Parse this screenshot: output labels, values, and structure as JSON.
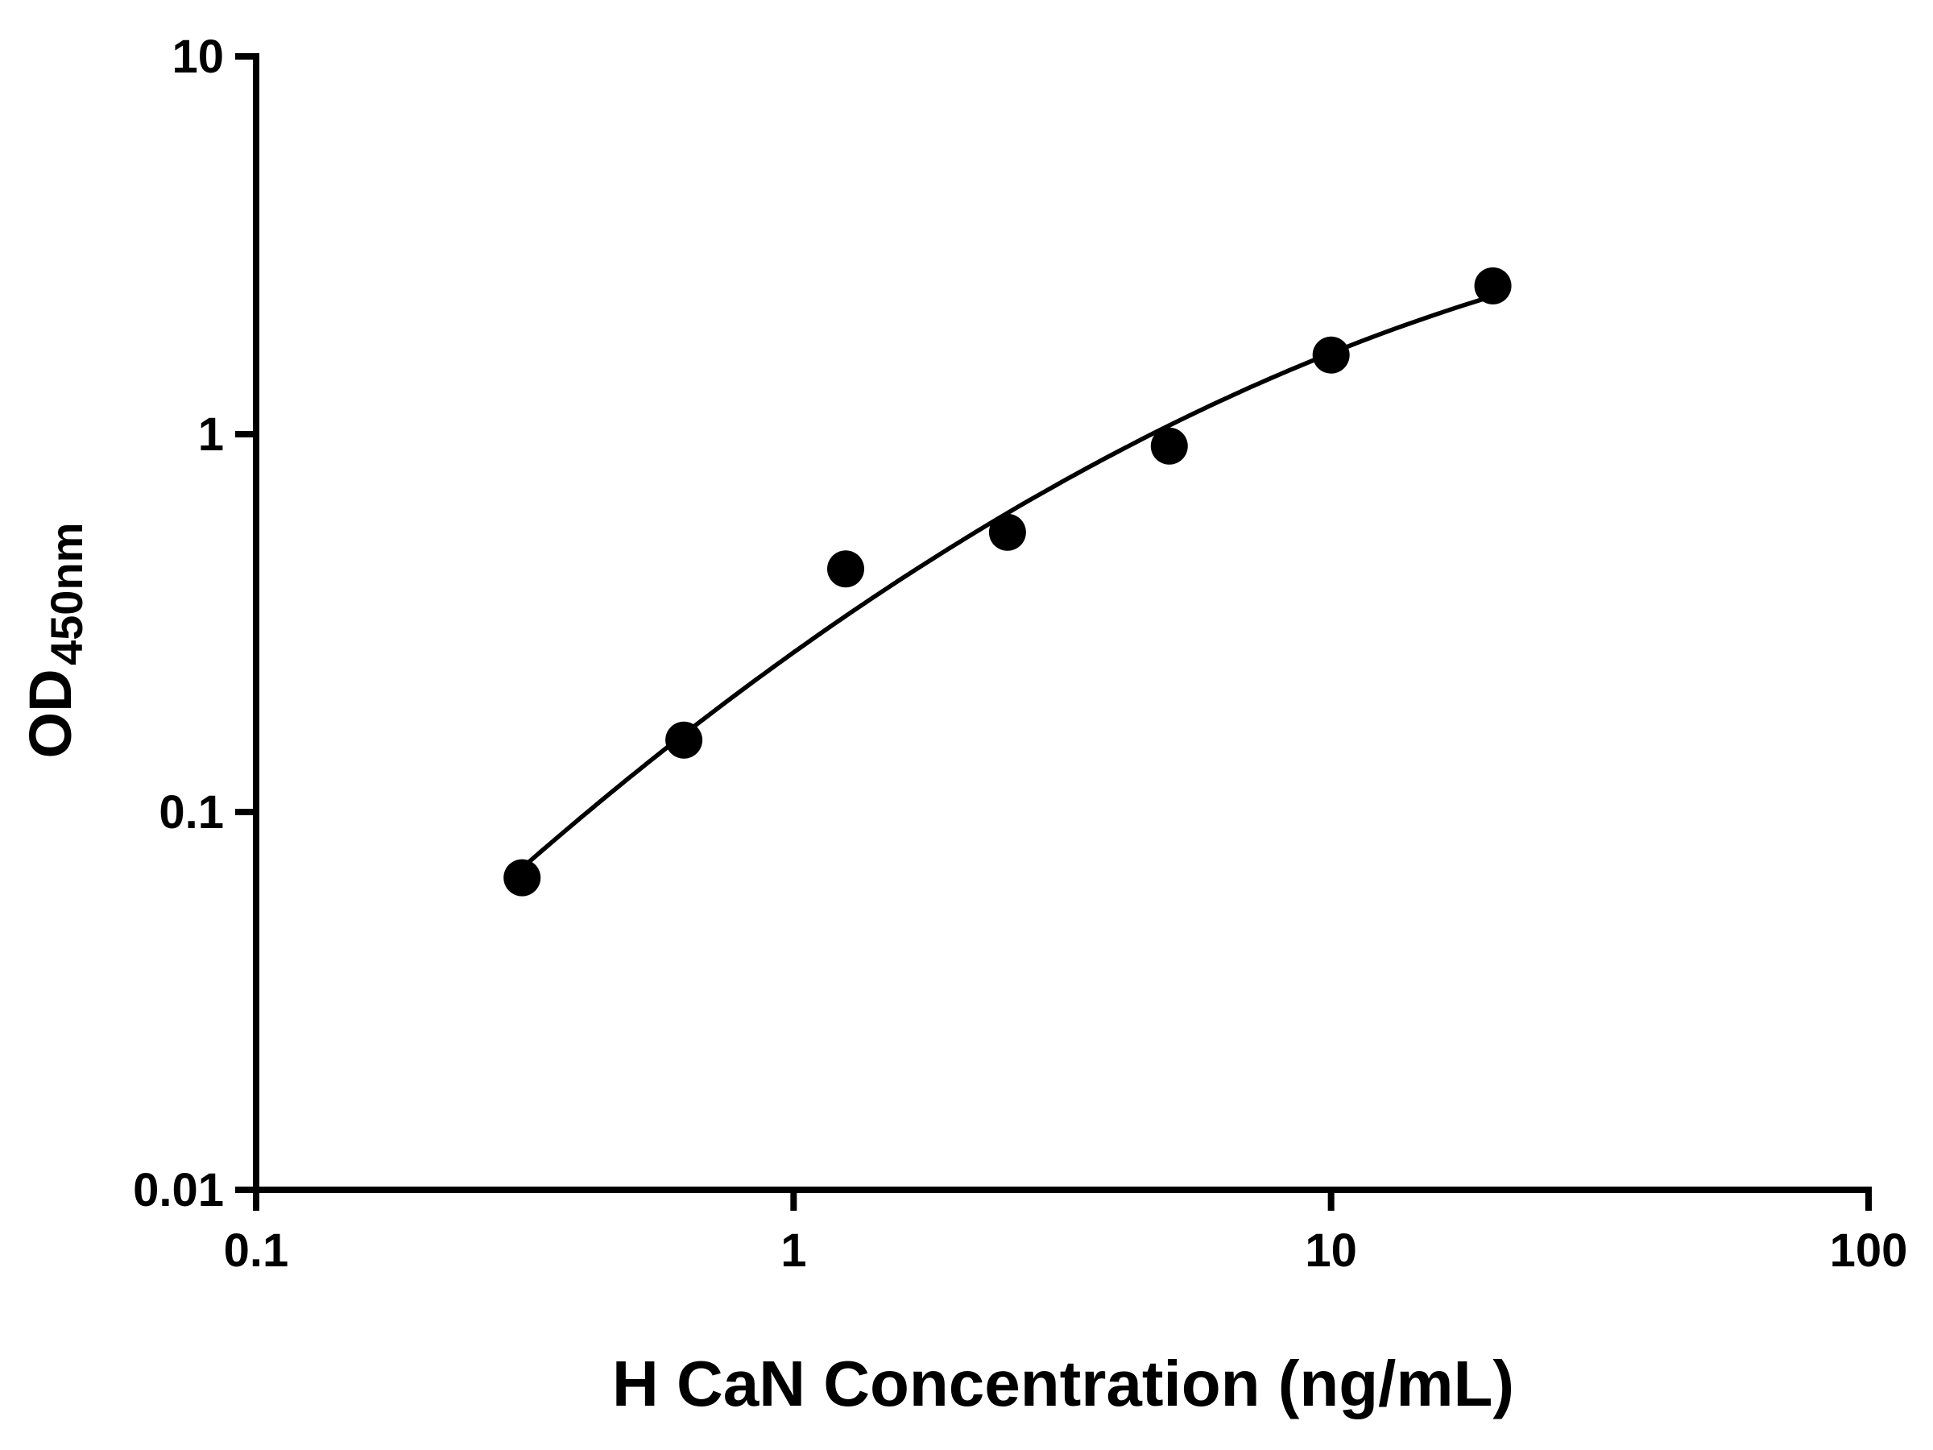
{
  "chart_data": {
    "type": "scatter",
    "title": "",
    "xlabel": "H CaN Concentration (ng/mL)",
    "ylabel_main": "OD",
    "ylabel_sub": "450nm",
    "x": [
      0.3125,
      0.625,
      1.25,
      2.5,
      5,
      10,
      20
    ],
    "y": [
      0.067,
      0.155,
      0.44,
      0.55,
      0.93,
      1.62,
      2.47
    ],
    "x_scale": "log",
    "y_scale": "log",
    "xlim": [
      0.1,
      100
    ],
    "ylim": [
      0.01,
      10
    ],
    "x_ticks": [
      "0.1",
      "1",
      "10",
      "100"
    ],
    "y_ticks": [
      "0.01",
      "0.1",
      "1",
      "10"
    ],
    "grid": false,
    "legend": "none",
    "marker_color": "#000000",
    "line_color": "#000000",
    "fit": "smooth curve through data points"
  }
}
